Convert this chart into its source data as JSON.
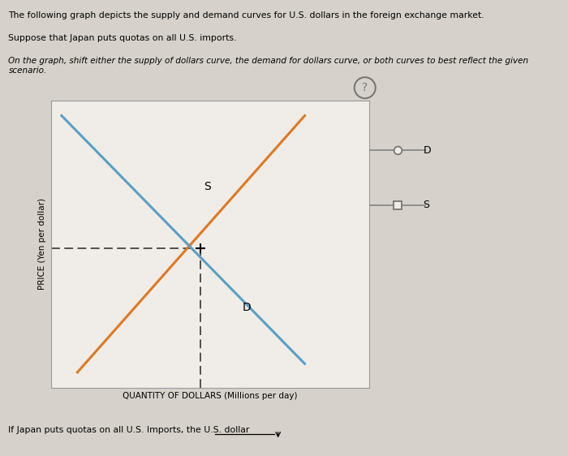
{
  "outer_bg": "#d6d2cb",
  "chart_bg": "#f0ede8",
  "title_line1": "The following graph depicts the supply and demand curves for U.S. dollars in the foreign exchange market.",
  "title_line2": "Suppose that Japan puts quotas on all U.S. imports.",
  "title_line3": "On the graph, shift either the supply of dollars curve, the demand for dollars curve, or both curves to best reflect the given scenario.",
  "ylabel": "PRICE (Yen per dollar)",
  "xlabel": "QUANTITY OF DOLLARS (Millions per day)",
  "supply_color": "#e07820",
  "demand_color": "#5b9fc4",
  "dashed_color": "#444444",
  "bottom_text": "If Japan puts quotas on all U.S. Imports, the U.S. dollar",
  "supply_label": "S",
  "demand_label": "D",
  "legend_D_label": "D",
  "legend_S_label": "S",
  "xlim": [
    0,
    10
  ],
  "ylim": [
    0,
    10
  ],
  "equilibrium_x": 4.7,
  "equilibrium_y": 4.85
}
